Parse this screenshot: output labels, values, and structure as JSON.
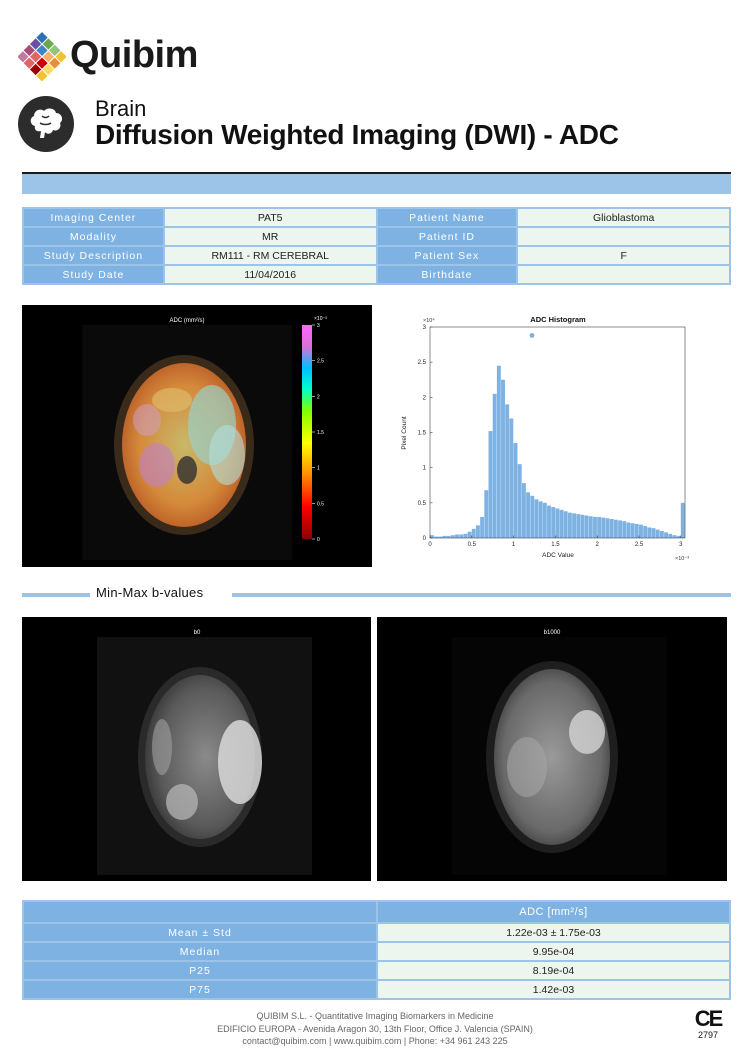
{
  "brand": {
    "name": "Quibim",
    "logo_icon": "diamond-mosaic-logo"
  },
  "header": {
    "organ": "Brain",
    "title": "Diffusion Weighted Imaging (DWI) - ADC",
    "icon": "brain-icon"
  },
  "info": [
    {
      "label": "Imaging Center",
      "value": "PAT5",
      "label2": "Patient Name",
      "value2": "Glioblastoma"
    },
    {
      "label": "Modality",
      "value": "MR",
      "label2": "Patient ID",
      "value2": ""
    },
    {
      "label": "Study Description",
      "value": "RM111 - RM CEREBRAL",
      "label2": "Patient Sex",
      "value2": "F"
    },
    {
      "label": "Study Date",
      "value": "11/04/2016",
      "label2": "Birthdate",
      "value2": ""
    }
  ],
  "adc_map": {
    "title": "ADC (mm²/s)",
    "colorbar_exponent": "×10⁻³",
    "colorbar_ticks": [
      "3",
      "2.5",
      "2",
      "1.5",
      "1",
      "0.5",
      "0"
    ]
  },
  "chart_data": {
    "type": "bar",
    "title": "ADC Histogram",
    "xlabel": "ADC Value",
    "ylabel": "Pixel Count",
    "x_exponent": "×10⁻³",
    "y_exponent": "×10⁴",
    "xlim": [
      0,
      3.05
    ],
    "ylim": [
      0,
      3
    ],
    "xticks": [
      0,
      0.5,
      1,
      1.5,
      2,
      2.5,
      3
    ],
    "yticks": [
      0,
      0.5,
      1,
      1.5,
      2,
      2.5,
      3
    ],
    "bar_color": "#7db2e3",
    "bins": [
      [
        0.025,
        0.04
      ],
      [
        0.075,
        0.02
      ],
      [
        0.125,
        0.02
      ],
      [
        0.175,
        0.03
      ],
      [
        0.225,
        0.03
      ],
      [
        0.275,
        0.04
      ],
      [
        0.325,
        0.05
      ],
      [
        0.375,
        0.05
      ],
      [
        0.425,
        0.06
      ],
      [
        0.475,
        0.09
      ],
      [
        0.525,
        0.13
      ],
      [
        0.575,
        0.18
      ],
      [
        0.625,
        0.3
      ],
      [
        0.675,
        0.68
      ],
      [
        0.725,
        1.52
      ],
      [
        0.775,
        2.05
      ],
      [
        0.825,
        2.45
      ],
      [
        0.875,
        2.25
      ],
      [
        0.925,
        1.9
      ],
      [
        0.975,
        1.7
      ],
      [
        1.025,
        1.35
      ],
      [
        1.075,
        1.05
      ],
      [
        1.125,
        0.78
      ],
      [
        1.175,
        0.65
      ],
      [
        1.225,
        0.6
      ],
      [
        1.275,
        0.55
      ],
      [
        1.325,
        0.52
      ],
      [
        1.375,
        0.5
      ],
      [
        1.425,
        0.46
      ],
      [
        1.475,
        0.44
      ],
      [
        1.525,
        0.42
      ],
      [
        1.575,
        0.4
      ],
      [
        1.625,
        0.38
      ],
      [
        1.675,
        0.36
      ],
      [
        1.725,
        0.35
      ],
      [
        1.775,
        0.34
      ],
      [
        1.825,
        0.33
      ],
      [
        1.875,
        0.32
      ],
      [
        1.925,
        0.31
      ],
      [
        1.975,
        0.3
      ],
      [
        2.025,
        0.3
      ],
      [
        2.075,
        0.29
      ],
      [
        2.125,
        0.28
      ],
      [
        2.175,
        0.27
      ],
      [
        2.225,
        0.26
      ],
      [
        2.275,
        0.25
      ],
      [
        2.325,
        0.24
      ],
      [
        2.375,
        0.22
      ],
      [
        2.425,
        0.21
      ],
      [
        2.475,
        0.2
      ],
      [
        2.525,
        0.19
      ],
      [
        2.575,
        0.17
      ],
      [
        2.625,
        0.15
      ],
      [
        2.675,
        0.14
      ],
      [
        2.725,
        0.12
      ],
      [
        2.775,
        0.1
      ],
      [
        2.825,
        0.08
      ],
      [
        2.875,
        0.06
      ],
      [
        2.925,
        0.04
      ],
      [
        2.975,
        0.03
      ],
      [
        3.025,
        0.5
      ]
    ],
    "marker": {
      "x": 1.22,
      "y": 2.88
    }
  },
  "section": {
    "title": "Min-Max b-values"
  },
  "bvalues": [
    {
      "label": "b0"
    },
    {
      "label": "b1000"
    }
  ],
  "stats": {
    "header": "ADC [mm²/s]",
    "rows": [
      {
        "label": "Mean ± Std",
        "value": "1.22e-03 ± 1.75e-03"
      },
      {
        "label": "Median",
        "value": "9.95e-04"
      },
      {
        "label": "P25",
        "value": "8.19e-04"
      },
      {
        "label": "P75",
        "value": "1.42e-03"
      }
    ]
  },
  "footer": {
    "line1": "QUIBIM S.L. - Quantitative Imaging Biomarkers in Medicine",
    "line2": "EDIFICIO EUROPA - Avenida Aragon 30, 13th Floor, Office J. Valencia (SPAIN)",
    "line3": "contact@quibim.com  |  www.quibim.com  |   Phone: +34 961 243 225",
    "ce_mark": "CE",
    "ce_number": "2797"
  }
}
